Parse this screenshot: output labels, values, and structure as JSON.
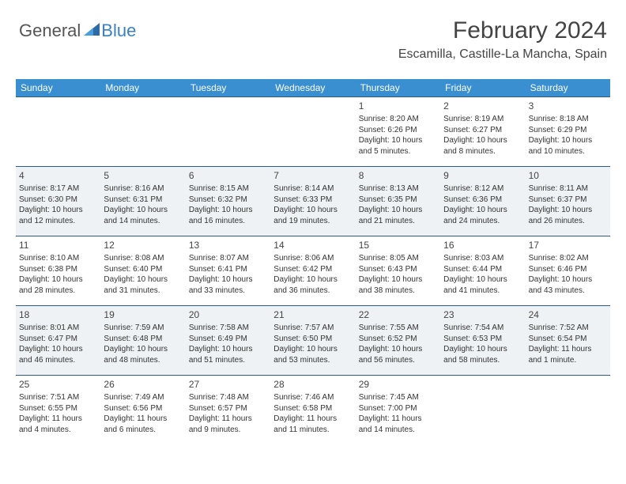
{
  "logo": {
    "text_general": "General",
    "text_blue": "Blue"
  },
  "header": {
    "title": "February 2024",
    "location": "Escamilla, Castille-La Mancha, Spain"
  },
  "colors": {
    "header_bg": "#3a8fd0",
    "header_text": "#ffffff",
    "row_border": "#2d5a8a",
    "alt_row_bg": "#eef2f5",
    "logo_blue": "#3a7fbf",
    "text": "#333333"
  },
  "day_headers": [
    "Sunday",
    "Monday",
    "Tuesday",
    "Wednesday",
    "Thursday",
    "Friday",
    "Saturday"
  ],
  "weeks": [
    {
      "alt": false,
      "days": [
        null,
        null,
        null,
        null,
        {
          "n": "1",
          "sunrise": "Sunrise: 8:20 AM",
          "sunset": "Sunset: 6:26 PM",
          "day1": "Daylight: 10 hours",
          "day2": "and 5 minutes."
        },
        {
          "n": "2",
          "sunrise": "Sunrise: 8:19 AM",
          "sunset": "Sunset: 6:27 PM",
          "day1": "Daylight: 10 hours",
          "day2": "and 8 minutes."
        },
        {
          "n": "3",
          "sunrise": "Sunrise: 8:18 AM",
          "sunset": "Sunset: 6:29 PM",
          "day1": "Daylight: 10 hours",
          "day2": "and 10 minutes."
        }
      ]
    },
    {
      "alt": true,
      "days": [
        {
          "n": "4",
          "sunrise": "Sunrise: 8:17 AM",
          "sunset": "Sunset: 6:30 PM",
          "day1": "Daylight: 10 hours",
          "day2": "and 12 minutes."
        },
        {
          "n": "5",
          "sunrise": "Sunrise: 8:16 AM",
          "sunset": "Sunset: 6:31 PM",
          "day1": "Daylight: 10 hours",
          "day2": "and 14 minutes."
        },
        {
          "n": "6",
          "sunrise": "Sunrise: 8:15 AM",
          "sunset": "Sunset: 6:32 PM",
          "day1": "Daylight: 10 hours",
          "day2": "and 16 minutes."
        },
        {
          "n": "7",
          "sunrise": "Sunrise: 8:14 AM",
          "sunset": "Sunset: 6:33 PM",
          "day1": "Daylight: 10 hours",
          "day2": "and 19 minutes."
        },
        {
          "n": "8",
          "sunrise": "Sunrise: 8:13 AM",
          "sunset": "Sunset: 6:35 PM",
          "day1": "Daylight: 10 hours",
          "day2": "and 21 minutes."
        },
        {
          "n": "9",
          "sunrise": "Sunrise: 8:12 AM",
          "sunset": "Sunset: 6:36 PM",
          "day1": "Daylight: 10 hours",
          "day2": "and 24 minutes."
        },
        {
          "n": "10",
          "sunrise": "Sunrise: 8:11 AM",
          "sunset": "Sunset: 6:37 PM",
          "day1": "Daylight: 10 hours",
          "day2": "and 26 minutes."
        }
      ]
    },
    {
      "alt": false,
      "days": [
        {
          "n": "11",
          "sunrise": "Sunrise: 8:10 AM",
          "sunset": "Sunset: 6:38 PM",
          "day1": "Daylight: 10 hours",
          "day2": "and 28 minutes."
        },
        {
          "n": "12",
          "sunrise": "Sunrise: 8:08 AM",
          "sunset": "Sunset: 6:40 PM",
          "day1": "Daylight: 10 hours",
          "day2": "and 31 minutes."
        },
        {
          "n": "13",
          "sunrise": "Sunrise: 8:07 AM",
          "sunset": "Sunset: 6:41 PM",
          "day1": "Daylight: 10 hours",
          "day2": "and 33 minutes."
        },
        {
          "n": "14",
          "sunrise": "Sunrise: 8:06 AM",
          "sunset": "Sunset: 6:42 PM",
          "day1": "Daylight: 10 hours",
          "day2": "and 36 minutes."
        },
        {
          "n": "15",
          "sunrise": "Sunrise: 8:05 AM",
          "sunset": "Sunset: 6:43 PM",
          "day1": "Daylight: 10 hours",
          "day2": "and 38 minutes."
        },
        {
          "n": "16",
          "sunrise": "Sunrise: 8:03 AM",
          "sunset": "Sunset: 6:44 PM",
          "day1": "Daylight: 10 hours",
          "day2": "and 41 minutes."
        },
        {
          "n": "17",
          "sunrise": "Sunrise: 8:02 AM",
          "sunset": "Sunset: 6:46 PM",
          "day1": "Daylight: 10 hours",
          "day2": "and 43 minutes."
        }
      ]
    },
    {
      "alt": true,
      "days": [
        {
          "n": "18",
          "sunrise": "Sunrise: 8:01 AM",
          "sunset": "Sunset: 6:47 PM",
          "day1": "Daylight: 10 hours",
          "day2": "and 46 minutes."
        },
        {
          "n": "19",
          "sunrise": "Sunrise: 7:59 AM",
          "sunset": "Sunset: 6:48 PM",
          "day1": "Daylight: 10 hours",
          "day2": "and 48 minutes."
        },
        {
          "n": "20",
          "sunrise": "Sunrise: 7:58 AM",
          "sunset": "Sunset: 6:49 PM",
          "day1": "Daylight: 10 hours",
          "day2": "and 51 minutes."
        },
        {
          "n": "21",
          "sunrise": "Sunrise: 7:57 AM",
          "sunset": "Sunset: 6:50 PM",
          "day1": "Daylight: 10 hours",
          "day2": "and 53 minutes."
        },
        {
          "n": "22",
          "sunrise": "Sunrise: 7:55 AM",
          "sunset": "Sunset: 6:52 PM",
          "day1": "Daylight: 10 hours",
          "day2": "and 56 minutes."
        },
        {
          "n": "23",
          "sunrise": "Sunrise: 7:54 AM",
          "sunset": "Sunset: 6:53 PM",
          "day1": "Daylight: 10 hours",
          "day2": "and 58 minutes."
        },
        {
          "n": "24",
          "sunrise": "Sunrise: 7:52 AM",
          "sunset": "Sunset: 6:54 PM",
          "day1": "Daylight: 11 hours",
          "day2": "and 1 minute."
        }
      ]
    },
    {
      "alt": false,
      "days": [
        {
          "n": "25",
          "sunrise": "Sunrise: 7:51 AM",
          "sunset": "Sunset: 6:55 PM",
          "day1": "Daylight: 11 hours",
          "day2": "and 4 minutes."
        },
        {
          "n": "26",
          "sunrise": "Sunrise: 7:49 AM",
          "sunset": "Sunset: 6:56 PM",
          "day1": "Daylight: 11 hours",
          "day2": "and 6 minutes."
        },
        {
          "n": "27",
          "sunrise": "Sunrise: 7:48 AM",
          "sunset": "Sunset: 6:57 PM",
          "day1": "Daylight: 11 hours",
          "day2": "and 9 minutes."
        },
        {
          "n": "28",
          "sunrise": "Sunrise: 7:46 AM",
          "sunset": "Sunset: 6:58 PM",
          "day1": "Daylight: 11 hours",
          "day2": "and 11 minutes."
        },
        {
          "n": "29",
          "sunrise": "Sunrise: 7:45 AM",
          "sunset": "Sunset: 7:00 PM",
          "day1": "Daylight: 11 hours",
          "day2": "and 14 minutes."
        },
        null,
        null
      ]
    }
  ]
}
